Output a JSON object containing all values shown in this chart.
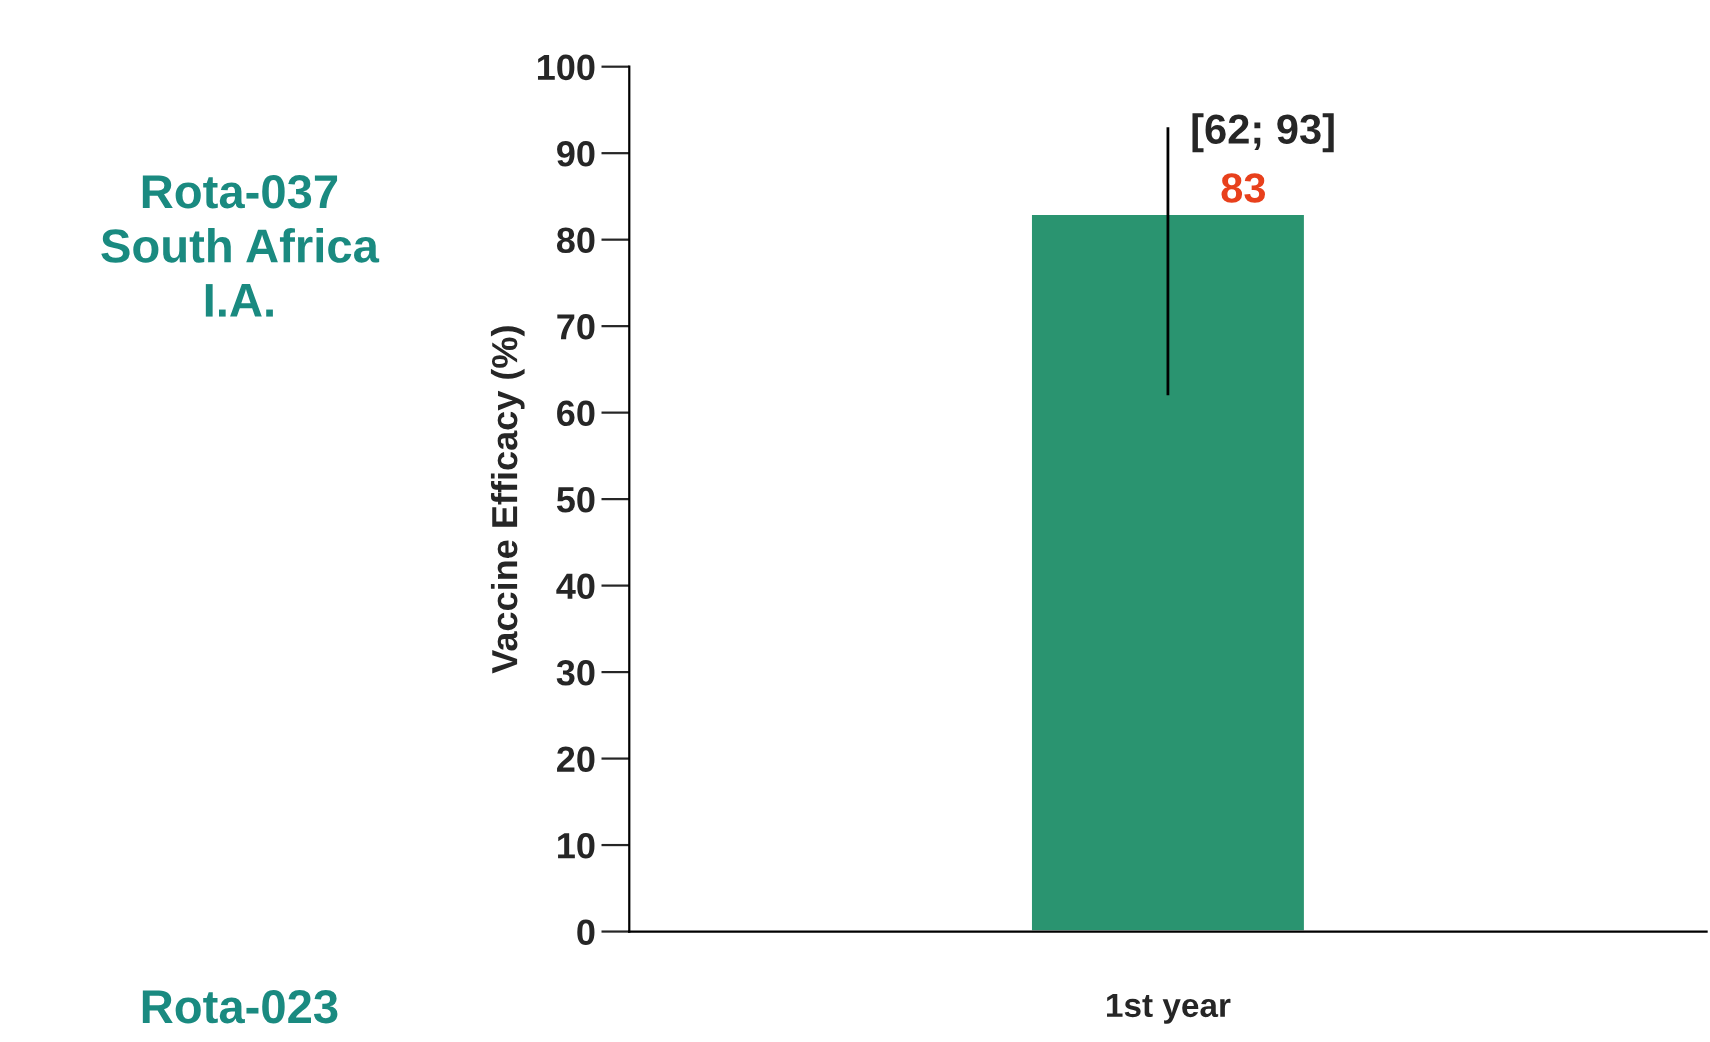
{
  "chart_data": {
    "type": "bar",
    "ylabel": "Vaccine Efficacy (%)",
    "categories": [
      "1st year"
    ],
    "series": [
      {
        "color": "#2a9470",
        "values": [
          83
        ],
        "errors": [
          [
            62,
            93
          ]
        ],
        "value_labels": [
          "83"
        ]
      }
    ],
    "ylim": [
      0,
      100
    ],
    "yticks": [
      0,
      10,
      20,
      30,
      40,
      50,
      60,
      70,
      80,
      90,
      100
    ],
    "annotations": [
      "Rota-037\nSouth Africa\nI.A.",
      "Rota-023",
      {
        "text": "[62; 93]",
        "x": "1st year",
        "y": 93
      }
    ],
    "grid": false,
    "legend": false
  }
}
